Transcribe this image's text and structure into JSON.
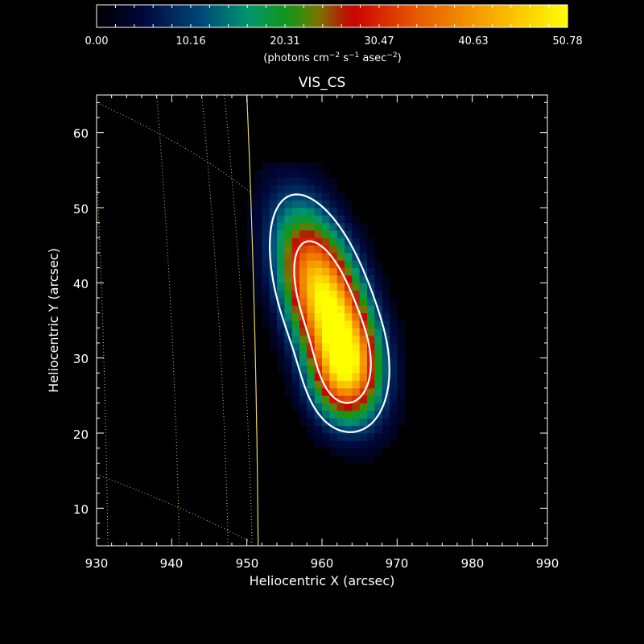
{
  "chart_data": {
    "type": "heatmap",
    "title": "VIS_CS",
    "xlabel": "Heliocentric X (arcsec)",
    "ylabel": "Heliocentric Y (arcsec)",
    "xlim": [
      930,
      990
    ],
    "ylim": [
      5,
      65
    ],
    "x_ticks": [
      "930",
      "940",
      "950",
      "960",
      "970",
      "980",
      "990"
    ],
    "y_ticks": [
      "10",
      "20",
      "30",
      "40",
      "50",
      "60"
    ],
    "colorbar": {
      "min": 0.0,
      "max": 50.78,
      "tick_labels": [
        "0.00",
        "10.16",
        "20.31",
        "30.47",
        "40.63",
        "50.78"
      ],
      "unit_parts": [
        "(photons cm",
        "−2",
        " s",
        "−1",
        " asec",
        "−2",
        ")"
      ]
    },
    "source": {
      "peak_x": 960.5,
      "peak_y": 37.5,
      "peak_value": 50.78,
      "contour_levels": [
        10.16,
        30.47
      ]
    },
    "limb_x_at_y": [
      [
        5,
        951.5
      ],
      [
        65,
        950.0
      ]
    ]
  },
  "colors": {
    "background": "#000000",
    "contour": "#ffffff",
    "limb": "#e8d46a",
    "grid": "#d8c870",
    "axis": "#ffffff"
  }
}
